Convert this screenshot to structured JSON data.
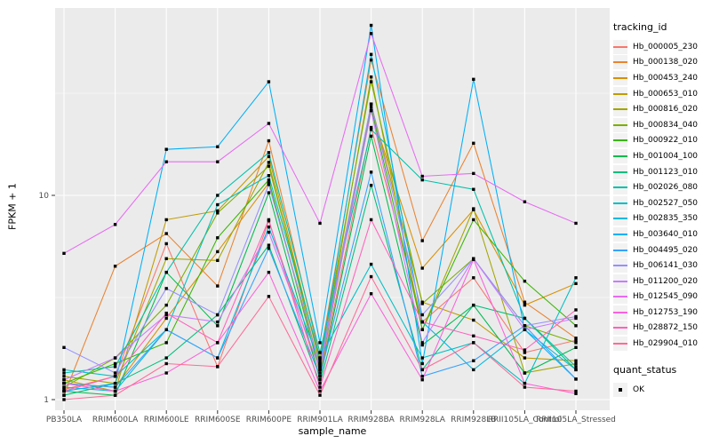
{
  "chart_data": {
    "type": "line",
    "title": "",
    "xlabel": "sample_name",
    "ylabel": "FPKM + 1",
    "y_scale": "log10",
    "y_ticks": [
      1,
      10
    ],
    "y_minor_breaks": [
      3.162,
      31.62
    ],
    "ylim": [
      0.89,
      82
    ],
    "legend_title": "tracking_id",
    "legend2_title": "quant_status",
    "legend2_items": [
      {
        "label": "OK",
        "marker": "black-square"
      }
    ],
    "legend_position": "right",
    "point_marker": "square",
    "point_color": "#000000",
    "panel_bg": "#EBEBEB",
    "grid_color": "#FFFFFF",
    "tick_label_color": "#4D4D4D",
    "categories": [
      "PB350LA",
      "RRIM600LA",
      "RRIM600LE",
      "RRIM600SE",
      "RRIM600PE",
      "RRIM901LA",
      "RRIM928BA",
      "RRIM928LA",
      "RRIM928LB",
      "RRII105LA_Control",
      "RRII105LA_Stressed"
    ],
    "series": [
      {
        "name": "Hb_000005_230",
        "color": "#F8766D",
        "values": [
          1.12,
          1.3,
          5.8,
          1.45,
          7.5,
          1.3,
          21.5,
          2.4,
          3.95,
          1.7,
          1.95
        ]
      },
      {
        "name": "Hb_000138_020",
        "color": "#EA8331",
        "values": [
          1.05,
          4.5,
          6.5,
          3.6,
          18.5,
          1.6,
          46,
          6.0,
          18,
          3.0,
          2.0
        ]
      },
      {
        "name": "Hb_000453_240",
        "color": "#D89000",
        "values": [
          1.2,
          1.15,
          2.5,
          5.3,
          11.5,
          1.45,
          26,
          4.4,
          8.5,
          2.9,
          3.7
        ]
      },
      {
        "name": "Hb_000653_010",
        "color": "#C09B00",
        "values": [
          1.25,
          1.1,
          7.6,
          8.4,
          15.5,
          1.5,
          28,
          3.0,
          2.45,
          1.6,
          1.55
        ]
      },
      {
        "name": "Hb_000816_020",
        "color": "#A3A500",
        "values": [
          1.3,
          1.2,
          4.9,
          4.8,
          14.5,
          1.4,
          38,
          2.2,
          8.6,
          1.35,
          1.5
        ]
      },
      {
        "name": "Hb_000834_040",
        "color": "#7CAE00",
        "values": [
          1.15,
          1.6,
          2.9,
          8.2,
          13.9,
          1.55,
          36,
          2.95,
          4.9,
          2.3,
          1.9
        ]
      },
      {
        "name": "Hb_000922_010",
        "color": "#39B600",
        "values": [
          1.2,
          1.5,
          1.9,
          6.2,
          11.9,
          1.35,
          27,
          2.2,
          7.6,
          3.8,
          2.3
        ]
      },
      {
        "name": "Hb_001004_100",
        "color": "#00BB4E",
        "values": [
          1.1,
          1.05,
          4.2,
          2.3,
          10.3,
          1.25,
          19.5,
          1.85,
          2.9,
          1.35,
          1.8
        ]
      },
      {
        "name": "Hb_001123_010",
        "color": "#00BF7D",
        "values": [
          1.05,
          1.2,
          1.6,
          2.6,
          5.7,
          1.2,
          11.2,
          1.4,
          2.9,
          2.5,
          1.4
        ]
      },
      {
        "name": "Hb_002026_080",
        "color": "#00C1A9",
        "values": [
          1.35,
          1.45,
          4.2,
          10.0,
          16.2,
          1.7,
          21,
          11.9,
          10.7,
          2.5,
          1.45
        ]
      },
      {
        "name": "Hb_002527_050",
        "color": "#00BFC4",
        "values": [
          1.4,
          1.3,
          2.2,
          9.0,
          12.5,
          1.6,
          4.6,
          1.6,
          1.9,
          1.2,
          3.95
        ]
      },
      {
        "name": "Hb_002835_350",
        "color": "#00BAE0",
        "values": [
          1.15,
          1.1,
          2.2,
          1.6,
          7.0,
          1.5,
          49,
          2.4,
          1.4,
          2.2,
          1.4
        ]
      },
      {
        "name": "Hb_003640_010",
        "color": "#00B0F6",
        "values": [
          1.1,
          1.2,
          16.8,
          17.3,
          36,
          1.9,
          68,
          1.5,
          37,
          2.2,
          1.26
        ]
      },
      {
        "name": "Hb_004495_020",
        "color": "#35A2FF",
        "values": [
          1.2,
          1.15,
          2.2,
          1.6,
          5.5,
          1.3,
          13,
          1.3,
          1.55,
          2.3,
          1.26
        ]
      },
      {
        "name": "Hb_006141_030",
        "color": "#9590FF",
        "values": [
          1.8,
          1.35,
          3.5,
          2.6,
          11.3,
          1.45,
          28,
          2.6,
          4.9,
          2.3,
          2.55
        ]
      },
      {
        "name": "Hb_011200_020",
        "color": "#C77CFF",
        "values": [
          1.25,
          1.6,
          2.6,
          2.4,
          6.6,
          1.4,
          26,
          1.9,
          4.9,
          2.2,
          2.5
        ]
      },
      {
        "name": "Hb_012545_090",
        "color": "#E76BF3",
        "values": [
          5.2,
          7.2,
          14.6,
          14.6,
          22.5,
          7.3,
          62,
          12.4,
          12.8,
          9.3,
          7.3
        ]
      },
      {
        "name": "Hb_012753_190",
        "color": "#FA62DB",
        "values": [
          1.2,
          1.1,
          1.35,
          1.9,
          4.2,
          1.1,
          3.3,
          1.25,
          4.85,
          1.2,
          1.07
        ]
      },
      {
        "name": "Hb_028872_150",
        "color": "#FF62BC",
        "values": [
          1.1,
          1.3,
          2.65,
          1.9,
          7.6,
          1.15,
          7.6,
          2.4,
          2.05,
          1.75,
          2.75
        ]
      },
      {
        "name": "Hb_029904_010",
        "color": "#FF6A98",
        "values": [
          1.0,
          1.05,
          1.5,
          1.45,
          3.2,
          1.05,
          4.0,
          1.4,
          1.9,
          1.15,
          1.1
        ]
      }
    ]
  }
}
